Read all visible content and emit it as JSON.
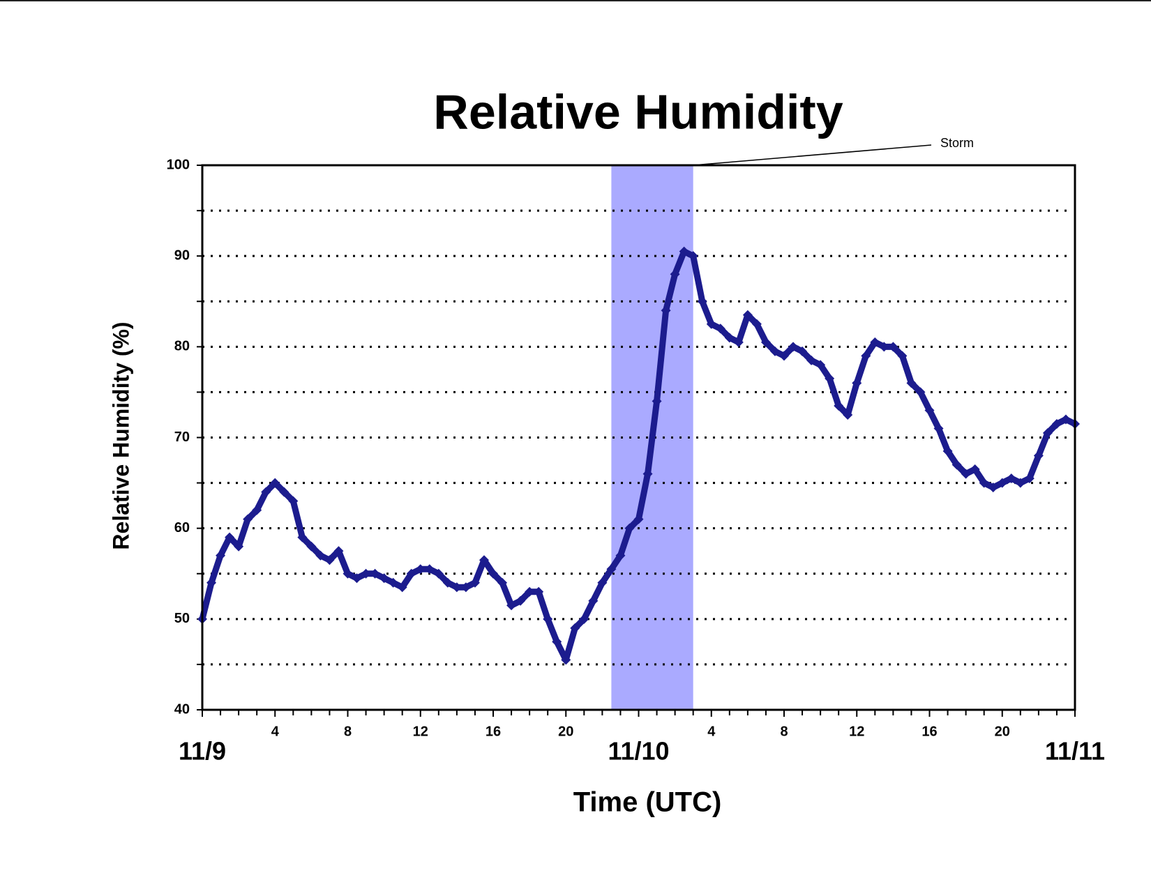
{
  "chart_data": {
    "type": "scatter",
    "title": "Relative Humidity",
    "xlabel": "Time (UTC)",
    "ylabel": "Relative Humidity (%)",
    "annotations": [
      {
        "text": "Storm",
        "x_start": 22.5,
        "x_end": 27
      }
    ],
    "shade_color": "#aaaaff",
    "xlim": [
      0,
      48
    ],
    "xticks": [
      {
        "value": 0,
        "label": "11/9"
      },
      4,
      8,
      12,
      16,
      20,
      {
        "value": 24,
        "label": "11/10"
      },
      {
        "value": 28,
        "label": "4"
      },
      {
        "value": 32,
        "label": "8"
      },
      {
        "value": 36,
        "label": "12"
      },
      {
        "value": 40,
        "label": "16"
      },
      {
        "value": 44,
        "label": "20"
      },
      {
        "value": 48,
        "label": "11/11"
      }
    ],
    "xminorticks": [
      1,
      2,
      3,
      5,
      6,
      7,
      9,
      10,
      11,
      13,
      14,
      15,
      17,
      18,
      19,
      21,
      22,
      23,
      25,
      26,
      27,
      29,
      30,
      31,
      33,
      34,
      35,
      37,
      38,
      39,
      41,
      42,
      43,
      45,
      46,
      47
    ],
    "ylim": [
      40,
      100
    ],
    "yticks": [
      40,
      50,
      60,
      70,
      80,
      90,
      100
    ],
    "yminorticks": [
      45,
      55,
      65,
      75,
      85,
      95
    ],
    "grid": true,
    "x": [
      0,
      0.5,
      1,
      1.5,
      2,
      2.5,
      3,
      3.5,
      4,
      4.5,
      5,
      5.5,
      6,
      6.5,
      7,
      7.5,
      8,
      8.5,
      9,
      9.5,
      10,
      10.5,
      11,
      11.5,
      12,
      12.5,
      13,
      13.5,
      14,
      14.5,
      15,
      15.5,
      16,
      16.5,
      17,
      17.5,
      18,
      18.5,
      19,
      19.5,
      20,
      20.5,
      21,
      21.5,
      22,
      22.5,
      23,
      23.5,
      24,
      24.5,
      25,
      25.5,
      26,
      26.5,
      27,
      27.5,
      28,
      28.5,
      29,
      29.5,
      30,
      30.5,
      31,
      31.5,
      32,
      32.5,
      33,
      33.5,
      34,
      34.5,
      35,
      35.5,
      36,
      36.5,
      37,
      37.5,
      38,
      38.5,
      39,
      39.5,
      40,
      40.5,
      41,
      41.5,
      42,
      42.5,
      43,
      43.5,
      44,
      44.5,
      45,
      45.5,
      46,
      46.5,
      47,
      47.5,
      48
    ],
    "series": [
      {
        "name": "Relative Humidity",
        "color": "#1c1c8e",
        "values": [
          50,
          54,
          57,
          59,
          58,
          61,
          62,
          64,
          65,
          64,
          63,
          59,
          58,
          57,
          56.5,
          57.5,
          55,
          54.5,
          55,
          55,
          54.5,
          54,
          53.5,
          55,
          55.5,
          55.5,
          55,
          54,
          53.5,
          53.5,
          54,
          56.5,
          55,
          54,
          51.5,
          52,
          53,
          53,
          50,
          47.5,
          45.5,
          49,
          50,
          52,
          54,
          55.5,
          57,
          60,
          61,
          66,
          74,
          84,
          88,
          90.5,
          90,
          85,
          82.5,
          82,
          81,
          80.5,
          83.5,
          82.5,
          80.5,
          79.5,
          79,
          80,
          79.5,
          78.5,
          78,
          76.5,
          73.5,
          72.5,
          76,
          79,
          80.5,
          80,
          80,
          79,
          76,
          75,
          73,
          71,
          68.5,
          67,
          66,
          66.5,
          65,
          64.5,
          65,
          65.5,
          65,
          65.5,
          68,
          70.5,
          71.5,
          72,
          71.5
        ]
      }
    ]
  }
}
